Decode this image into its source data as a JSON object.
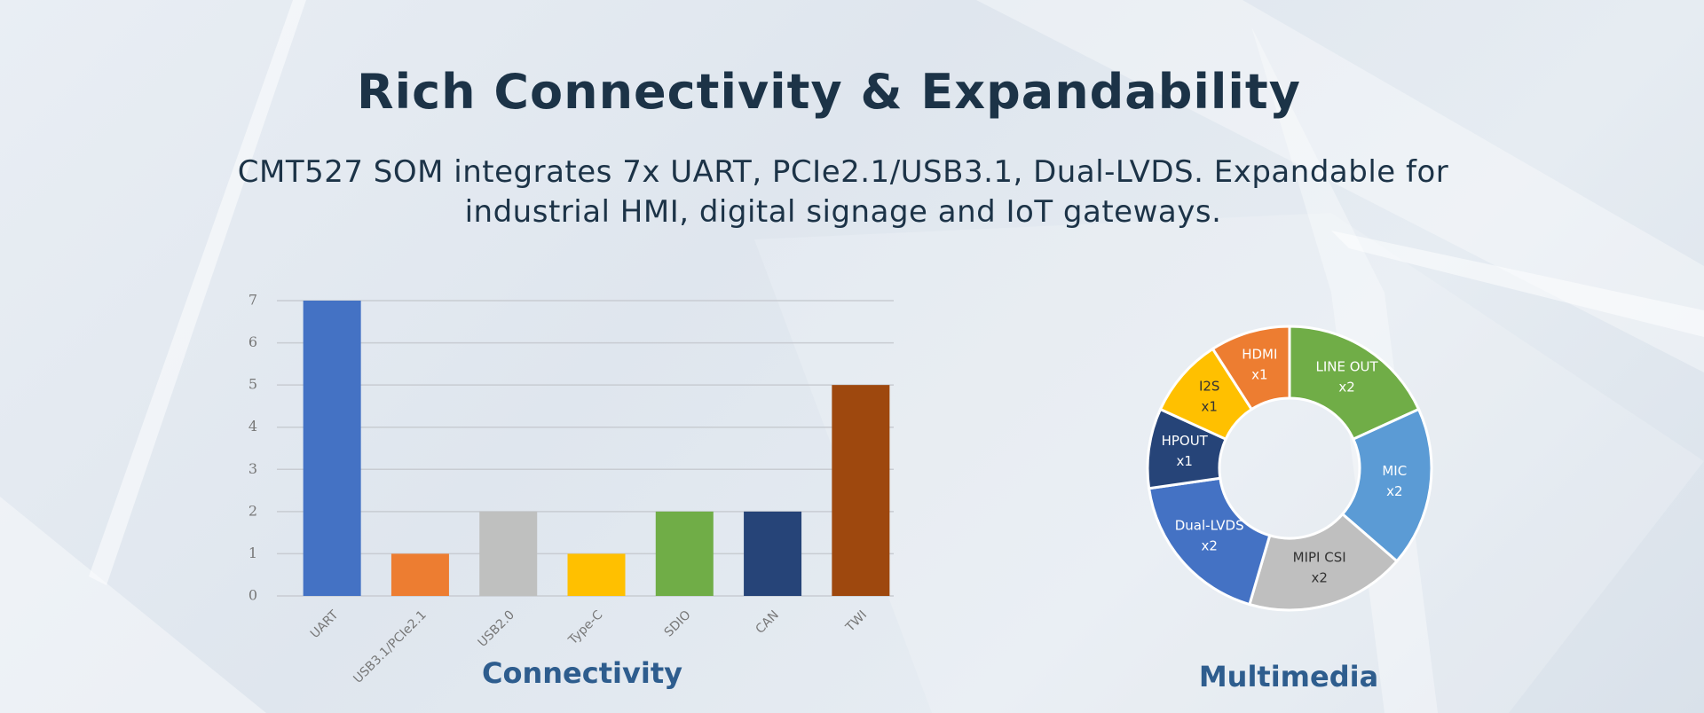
{
  "header": {
    "title": "Rich Connectivity & Expandability",
    "subtitle": "CMT527 SOM integrates 7x UART, PCIe2.1/USB3.1, Dual-LVDS. Expandable for industrial HMI, digital signage and IoT gateways."
  },
  "chart_data": [
    {
      "type": "bar",
      "title": "Connectivity",
      "categories": [
        "UART",
        "USB3.1/PCIe2.1",
        "USB2.0",
        "Type-C",
        "SDIO",
        "CAN",
        "TWI"
      ],
      "values": [
        7,
        1,
        2,
        1,
        2,
        2,
        5
      ],
      "colors": [
        "#4472c4",
        "#ed7d31",
        "#bfc0bf",
        "#ffc000",
        "#70ad47",
        "#264478",
        "#9e480e"
      ],
      "ylim": [
        0,
        7
      ],
      "yticks": [
        0,
        1,
        2,
        3,
        4,
        5,
        6,
        7
      ],
      "grid": true
    },
    {
      "type": "pie",
      "title": "Multimedia",
      "donut": true,
      "categories": [
        "LINE OUT",
        "MIC",
        "MIPI CSI",
        "Dual-LVDS",
        "HPOUT",
        "I2S",
        "HDMI"
      ],
      "values": [
        2,
        2,
        2,
        2,
        1,
        1,
        1
      ],
      "value_labels": [
        "x2",
        "x2",
        "x2",
        "x2",
        "x1",
        "x1",
        "x1"
      ],
      "colors": [
        "#70ad47",
        "#5b9bd5",
        "#bfbfbf",
        "#4472c4",
        "#264478",
        "#ffc000",
        "#ed7d31"
      ]
    }
  ]
}
